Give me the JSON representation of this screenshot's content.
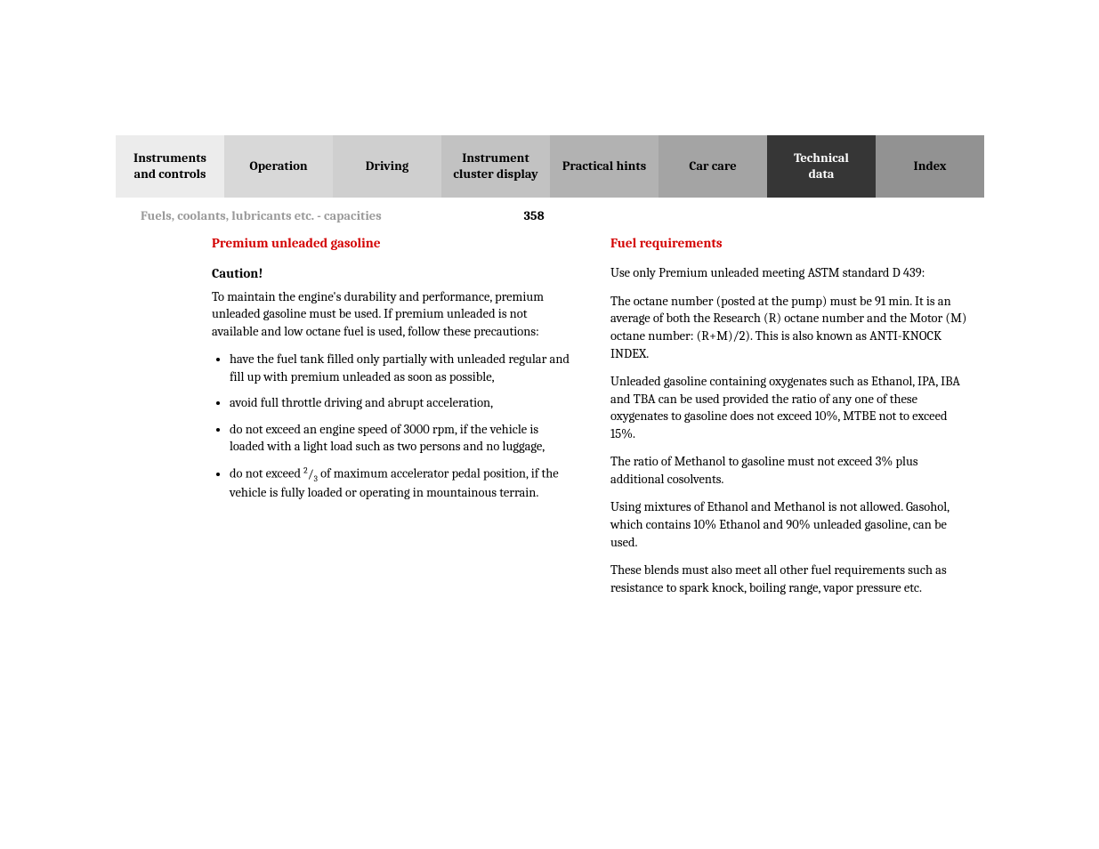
{
  "tabs": [
    {
      "label": "Instruments\nand controls"
    },
    {
      "label": "Operation"
    },
    {
      "label": "Driving"
    },
    {
      "label": "Instrument\ncluster display"
    },
    {
      "label": "Practical hints"
    },
    {
      "label": "Car care"
    },
    {
      "label": "Technical\ndata"
    },
    {
      "label": "Index"
    }
  ],
  "header": {
    "breadcrumb": "Fuels, coolants, lubricants etc. - capacities",
    "page_number": "358"
  },
  "left": {
    "heading": "Premium unleaded gasoline",
    "caution_label": "Caution!",
    "intro": "To maintain the engine's durability and performance, premium unleaded gasoline must be used. If premium unleaded is not available and low octane fuel is used, follow these precautions:",
    "bullets": [
      "have the fuel tank filled only partially with unleaded regular and fill up with premium unleaded as soon as possible,",
      "avoid full throttle driving and abrupt acceleration,",
      "do not exceed an engine speed of 3000 rpm, if the vehicle is loaded with a light load such as two persons and no luggage,"
    ],
    "bullet4_prefix": "do not exceed ",
    "bullet4_frac_num": "2",
    "bullet4_frac_den": "3",
    "bullet4_suffix": " of maximum accelerator pedal position, if the vehicle is fully loaded or operating in mountainous terrain."
  },
  "right": {
    "heading": "Fuel requirements",
    "paragraphs": [
      "Use only Premium unleaded meeting ASTM standard D 439:",
      "The octane number (posted at the pump) must be 91 min. It is an average of both the Research (R) octane number and the Motor (M) octane number: (R+M)/2). This is also known as ANTI-KNOCK INDEX.",
      "Unleaded gasoline containing oxygenates such as Ethanol, IPA, IBA and TBA can be used provided the ratio of any one of these oxygenates to gasoline does not exceed 10%, MTBE not to exceed 15%.",
      "The ratio of Methanol to gasoline must not exceed 3% plus additional cosolvents.",
      "Using mixtures of Ethanol and Methanol is not allowed. Gasohol, which contains 10% Ethanol and 90% unleaded gasoline, can be used.",
      "These blends must also meet all other fuel requirements such as resistance to spark knock, boiling range, vapor pressure etc."
    ]
  }
}
